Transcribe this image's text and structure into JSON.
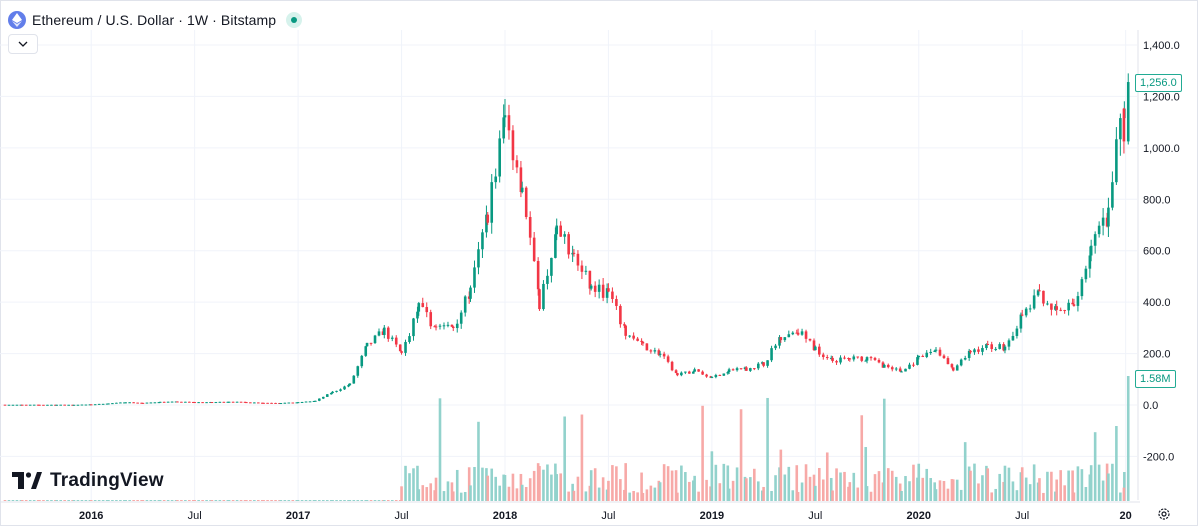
{
  "header": {
    "title": "Ethereum / U.S. Dollar · 1W · Bitstamp",
    "coin_icon": "ethereum-icon",
    "status_icon": "market-status-dot"
  },
  "collapse_icon": "chevron-down-icon",
  "brand": {
    "name": "TradingView"
  },
  "settings_icon": "gear-icon",
  "price_tag": "1,256.0",
  "volume_tag": "1.58M",
  "colors": {
    "up": "#089981",
    "down": "#f23645",
    "up_volume": "#92d2cc",
    "down_volume": "#f7a9a7",
    "grid": "#f0f3fa",
    "accent": "#22ab94"
  },
  "chart_data": {
    "type": "candlestick",
    "title": "Ethereum / U.S. Dollar · 1W · Bitstamp",
    "xlabel": "",
    "ylabel": "",
    "ylim": [
      -300,
      1450
    ],
    "y_ticks": [
      "1,400.0",
      "1,200.0",
      "1,000.0",
      "800.0",
      "600.0",
      "400.0",
      "200.0",
      "0.0",
      "-200.0"
    ],
    "x_ticks": [
      "2016",
      "Jul",
      "2017",
      "Jul",
      "2018",
      "Jul",
      "2019",
      "Jul",
      "2020",
      "Jul",
      "20"
    ],
    "grid": true,
    "last_price": 1256.0,
    "last_volume": "1.58M",
    "monthly_closes": [
      {
        "month": "2015-08",
        "close": 1.2
      },
      {
        "month": "2015-09",
        "close": 0.9
      },
      {
        "month": "2015-10",
        "close": 0.9
      },
      {
        "month": "2015-11",
        "close": 0.9
      },
      {
        "month": "2015-12",
        "close": 0.9
      },
      {
        "month": "2016-01",
        "close": 2.2
      },
      {
        "month": "2016-02",
        "close": 6
      },
      {
        "month": "2016-03",
        "close": 11
      },
      {
        "month": "2016-04",
        "close": 8
      },
      {
        "month": "2016-05",
        "close": 12
      },
      {
        "month": "2016-06",
        "close": 13
      },
      {
        "month": "2016-07",
        "close": 11
      },
      {
        "month": "2016-08",
        "close": 11
      },
      {
        "month": "2016-09",
        "close": 13
      },
      {
        "month": "2016-10",
        "close": 11
      },
      {
        "month": "2016-11",
        "close": 8.5
      },
      {
        "month": "2016-12",
        "close": 8
      },
      {
        "month": "2017-01",
        "close": 10.5
      },
      {
        "month": "2017-02",
        "close": 16
      },
      {
        "month": "2017-03",
        "close": 50
      },
      {
        "month": "2017-04",
        "close": 80
      },
      {
        "month": "2017-05",
        "close": 230
      },
      {
        "month": "2017-06",
        "close": 290
      },
      {
        "month": "2017-07",
        "close": 200
      },
      {
        "month": "2017-08",
        "close": 380
      },
      {
        "month": "2017-09",
        "close": 300
      },
      {
        "month": "2017-10",
        "close": 305
      },
      {
        "month": "2017-11",
        "close": 440
      },
      {
        "month": "2017-12",
        "close": 750
      },
      {
        "month": "2018-01",
        "close": 1120
      },
      {
        "month": "2018-02",
        "close": 855
      },
      {
        "month": "2018-03",
        "close": 395
      },
      {
        "month": "2018-04",
        "close": 670
      },
      {
        "month": "2018-05",
        "close": 580
      },
      {
        "month": "2018-06",
        "close": 455
      },
      {
        "month": "2018-07",
        "close": 435
      },
      {
        "month": "2018-08",
        "close": 280
      },
      {
        "month": "2018-09",
        "close": 230
      },
      {
        "month": "2018-10",
        "close": 198
      },
      {
        "month": "2018-11",
        "close": 115
      },
      {
        "month": "2018-12",
        "close": 134
      },
      {
        "month": "2019-01",
        "close": 107
      },
      {
        "month": "2019-02",
        "close": 136
      },
      {
        "month": "2019-03",
        "close": 141
      },
      {
        "month": "2019-04",
        "close": 160
      },
      {
        "month": "2019-05",
        "close": 268
      },
      {
        "month": "2019-06",
        "close": 290
      },
      {
        "month": "2019-07",
        "close": 218
      },
      {
        "month": "2019-08",
        "close": 172
      },
      {
        "month": "2019-09",
        "close": 180
      },
      {
        "month": "2019-10",
        "close": 183
      },
      {
        "month": "2019-11",
        "close": 152
      },
      {
        "month": "2019-12",
        "close": 130
      },
      {
        "month": "2020-01",
        "close": 180
      },
      {
        "month": "2020-02",
        "close": 218
      },
      {
        "month": "2020-03",
        "close": 133
      },
      {
        "month": "2020-04",
        "close": 207
      },
      {
        "month": "2020-05",
        "close": 231
      },
      {
        "month": "2020-06",
        "close": 225
      },
      {
        "month": "2020-07",
        "close": 345
      },
      {
        "month": "2020-08",
        "close": 434
      },
      {
        "month": "2020-09",
        "close": 360
      },
      {
        "month": "2020-10",
        "close": 386
      },
      {
        "month": "2020-11",
        "close": 615
      },
      {
        "month": "2020-12",
        "close": 737
      },
      {
        "month": "2021-01",
        "close": 1256
      }
    ]
  }
}
